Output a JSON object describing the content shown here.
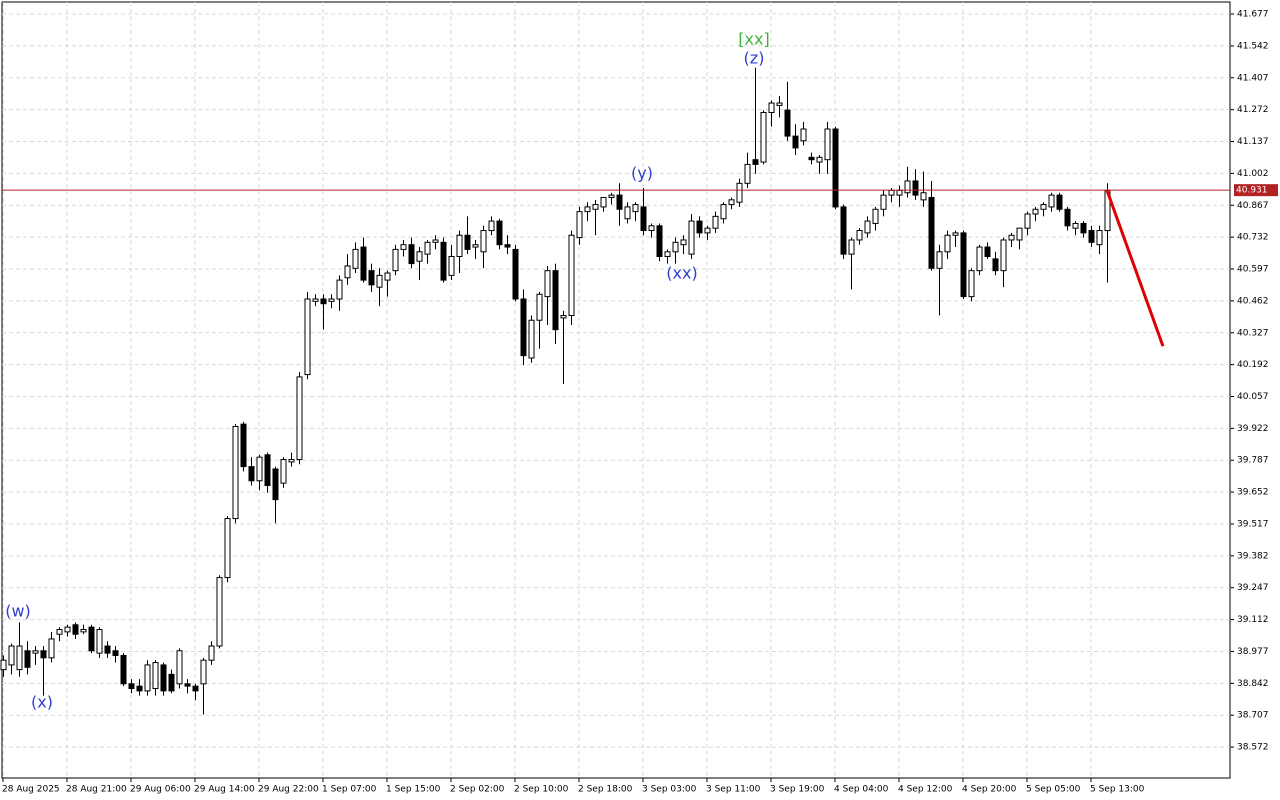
{
  "chart_data": {
    "type": "candlestick",
    "categories": [
      "28 Aug 2025",
      null,
      null,
      null,
      null,
      null,
      null,
      null,
      "28 Aug 21:00",
      null,
      null,
      null,
      null,
      null,
      null,
      null,
      "29 Aug 06:00",
      null,
      null,
      null,
      null,
      null,
      null,
      null,
      "29 Aug 14:00",
      null,
      null,
      null,
      null,
      null,
      null,
      null,
      "29 Aug 22:00",
      null,
      null,
      null,
      null,
      null,
      null,
      null,
      "1 Sep 07:00",
      null,
      null,
      null,
      null,
      null,
      null,
      null,
      "1 Sep 15:00",
      null,
      null,
      null,
      null,
      null,
      null,
      null,
      "2 Sep 02:00",
      null,
      null,
      null,
      null,
      null,
      null,
      null,
      "2 Sep 10:00",
      null,
      null,
      null,
      null,
      null,
      null,
      null,
      "2 Sep 18:00",
      null,
      null,
      null,
      null,
      null,
      null,
      null,
      "3 Sep 03:00",
      null,
      null,
      null,
      null,
      null,
      null,
      null,
      "3 Sep 11:00",
      null,
      null,
      null,
      null,
      null,
      null,
      null,
      "3 Sep 19:00",
      null,
      null,
      null,
      null,
      null,
      null,
      null,
      "4 Sep 04:00",
      null,
      null,
      null,
      null,
      null,
      null,
      null,
      "4 Sep 12:00",
      null,
      null,
      null,
      null,
      null,
      null,
      null,
      "4 Sep 20:00",
      null,
      null,
      null,
      null,
      null,
      null,
      null,
      "5 Sep 05:00",
      null,
      null,
      null,
      null,
      null,
      null,
      null,
      "5 Sep 13:00",
      null,
      null
    ],
    "ohlc": [
      [
        38.9,
        38.96,
        38.87,
        38.94
      ],
      [
        38.92,
        39.01,
        38.88,
        39.0
      ],
      [
        38.9,
        39.1,
        38.87,
        39.0
      ],
      [
        38.98,
        39.02,
        38.88,
        38.91
      ],
      [
        38.97,
        39.0,
        38.92,
        38.98
      ],
      [
        38.98,
        39.0,
        38.79,
        38.95
      ],
      [
        38.95,
        39.06,
        38.93,
        39.03
      ],
      [
        39.05,
        39.08,
        39.02,
        39.07
      ],
      [
        39.06,
        39.09,
        39.04,
        39.08
      ],
      [
        39.09,
        39.1,
        39.03,
        39.05
      ],
      [
        39.06,
        39.09,
        39.05,
        39.07
      ],
      [
        39.08,
        39.09,
        38.97,
        38.98
      ],
      [
        38.97,
        39.08,
        38.95,
        39.07
      ],
      [
        39.0,
        39.02,
        38.95,
        38.97
      ],
      [
        38.98,
        39.0,
        38.93,
        38.96
      ],
      [
        38.96,
        38.97,
        38.83,
        38.84
      ],
      [
        38.84,
        38.86,
        38.8,
        38.82
      ],
      [
        38.83,
        38.86,
        38.79,
        38.81
      ],
      [
        38.81,
        38.94,
        38.79,
        38.92
      ],
      [
        38.82,
        38.94,
        38.79,
        38.93
      ],
      [
        38.92,
        38.93,
        38.79,
        38.81
      ],
      [
        38.88,
        38.9,
        38.8,
        38.81
      ],
      [
        38.84,
        38.99,
        38.82,
        38.98
      ],
      [
        38.84,
        38.86,
        38.8,
        38.83
      ],
      [
        38.83,
        38.84,
        38.77,
        38.81
      ],
      [
        38.84,
        38.95,
        38.71,
        38.94
      ],
      [
        38.94,
        39.02,
        38.92,
        39.0
      ],
      [
        39.0,
        39.3,
        38.99,
        39.29
      ],
      [
        39.29,
        39.55,
        39.27,
        39.54
      ],
      [
        39.54,
        39.94,
        39.52,
        39.93
      ],
      [
        39.94,
        39.95,
        39.74,
        39.76
      ],
      [
        39.76,
        39.8,
        39.68,
        39.7
      ],
      [
        39.7,
        39.81,
        39.66,
        39.8
      ],
      [
        39.81,
        39.82,
        39.65,
        39.68
      ],
      [
        39.75,
        39.76,
        39.52,
        39.62
      ],
      [
        39.69,
        39.8,
        39.67,
        39.79
      ],
      [
        39.78,
        39.82,
        39.76,
        39.79
      ],
      [
        39.79,
        40.16,
        39.77,
        40.14
      ],
      [
        40.15,
        40.5,
        40.13,
        40.47
      ],
      [
        40.46,
        40.49,
        40.44,
        40.47
      ],
      [
        40.47,
        40.49,
        40.34,
        40.45
      ],
      [
        40.46,
        40.49,
        40.43,
        40.47
      ],
      [
        40.47,
        40.57,
        40.42,
        40.55
      ],
      [
        40.56,
        40.66,
        40.53,
        40.61
      ],
      [
        40.6,
        40.71,
        40.58,
        40.68
      ],
      [
        40.69,
        40.73,
        40.54,
        40.55
      ],
      [
        40.59,
        40.62,
        40.5,
        40.53
      ],
      [
        40.52,
        40.6,
        40.44,
        40.57
      ],
      [
        40.55,
        40.59,
        40.48,
        40.58
      ],
      [
        40.59,
        40.7,
        40.57,
        40.68
      ],
      [
        40.68,
        40.72,
        40.65,
        40.7
      ],
      [
        40.7,
        40.73,
        40.6,
        40.62
      ],
      [
        40.63,
        40.69,
        40.55,
        40.67
      ],
      [
        40.66,
        40.72,
        40.62,
        40.71
      ],
      [
        40.71,
        40.74,
        40.68,
        40.72
      ],
      [
        40.71,
        40.73,
        40.54,
        40.55
      ],
      [
        40.57,
        40.7,
        40.55,
        40.65
      ],
      [
        40.65,
        40.76,
        40.58,
        40.74
      ],
      [
        40.74,
        40.82,
        40.66,
        40.68
      ],
      [
        40.69,
        40.72,
        40.64,
        40.7
      ],
      [
        40.67,
        40.78,
        40.6,
        40.76
      ],
      [
        40.76,
        40.82,
        40.74,
        40.8
      ],
      [
        40.8,
        40.81,
        40.68,
        40.7
      ],
      [
        40.7,
        40.74,
        40.66,
        40.69
      ],
      [
        40.68,
        40.7,
        40.46,
        40.47
      ],
      [
        40.47,
        40.51,
        40.19,
        40.23
      ],
      [
        40.22,
        40.4,
        40.2,
        40.38
      ],
      [
        40.38,
        40.5,
        40.26,
        40.49
      ],
      [
        40.48,
        40.61,
        40.36,
        40.59
      ],
      [
        40.59,
        40.62,
        40.28,
        40.34
      ],
      [
        40.39,
        40.42,
        40.11,
        40.4
      ],
      [
        40.4,
        40.76,
        40.36,
        40.74
      ],
      [
        40.73,
        40.86,
        40.7,
        40.84
      ],
      [
        40.84,
        40.88,
        40.8,
        40.86
      ],
      [
        40.85,
        40.89,
        40.74,
        40.87
      ],
      [
        40.86,
        40.9,
        40.84,
        40.9
      ],
      [
        40.9,
        40.92,
        40.87,
        40.91
      ],
      [
        40.91,
        40.96,
        40.78,
        40.85
      ],
      [
        40.81,
        40.88,
        40.79,
        40.86
      ],
      [
        40.84,
        40.88,
        40.8,
        40.87
      ],
      [
        40.86,
        40.94,
        40.74,
        40.76
      ],
      [
        40.76,
        40.79,
        40.73,
        40.78
      ],
      [
        40.78,
        40.79,
        40.63,
        40.65
      ],
      [
        40.65,
        40.68,
        40.62,
        40.67
      ],
      [
        40.67,
        40.73,
        40.62,
        40.71
      ],
      [
        40.7,
        40.74,
        40.66,
        40.72
      ],
      [
        40.66,
        40.83,
        40.64,
        40.8
      ],
      [
        40.8,
        40.82,
        40.73,
        40.75
      ],
      [
        40.75,
        40.78,
        40.72,
        40.77
      ],
      [
        40.77,
        40.84,
        40.75,
        40.82
      ],
      [
        40.81,
        40.88,
        40.79,
        40.87
      ],
      [
        40.87,
        40.9,
        40.85,
        40.89
      ],
      [
        40.88,
        40.98,
        40.86,
        40.96
      ],
      [
        40.96,
        41.09,
        40.94,
        41.04
      ],
      [
        41.06,
        41.45,
        41.0,
        41.04
      ],
      [
        41.05,
        41.27,
        41.04,
        41.26
      ],
      [
        41.26,
        41.31,
        41.2,
        41.3
      ],
      [
        41.29,
        41.33,
        41.24,
        41.3
      ],
      [
        41.27,
        41.39,
        41.14,
        41.16
      ],
      [
        41.16,
        41.21,
        41.08,
        41.11
      ],
      [
        41.14,
        41.22,
        41.12,
        41.19
      ],
      [
        41.07,
        41.09,
        41.04,
        41.06
      ],
      [
        41.05,
        41.08,
        41.0,
        41.07
      ],
      [
        41.06,
        41.22,
        41.0,
        41.19
      ],
      [
        41.19,
        41.2,
        40.85,
        40.86
      ],
      [
        40.86,
        40.87,
        40.64,
        40.66
      ],
      [
        40.66,
        40.73,
        40.51,
        40.72
      ],
      [
        40.72,
        40.77,
        40.7,
        40.76
      ],
      [
        40.75,
        40.82,
        40.73,
        40.8
      ],
      [
        40.79,
        40.86,
        40.76,
        40.85
      ],
      [
        40.85,
        40.93,
        40.82,
        40.91
      ],
      [
        40.91,
        40.94,
        40.88,
        40.93
      ],
      [
        40.91,
        40.95,
        40.86,
        40.93
      ],
      [
        40.92,
        41.03,
        40.9,
        40.97
      ],
      [
        40.97,
        41.02,
        40.89,
        40.91
      ],
      [
        40.89,
        41.01,
        40.86,
        40.92
      ],
      [
        40.9,
        40.97,
        40.59,
        40.6
      ],
      [
        40.6,
        40.7,
        40.4,
        40.67
      ],
      [
        40.67,
        40.76,
        40.64,
        40.74
      ],
      [
        40.74,
        40.76,
        40.69,
        40.75
      ],
      [
        40.75,
        40.76,
        40.47,
        40.48
      ],
      [
        40.48,
        40.6,
        40.46,
        40.59
      ],
      [
        40.59,
        40.7,
        40.57,
        40.69
      ],
      [
        40.69,
        40.71,
        40.64,
        40.65
      ],
      [
        40.64,
        40.67,
        40.57,
        40.59
      ],
      [
        40.59,
        40.73,
        40.52,
        40.72
      ],
      [
        40.72,
        40.75,
        40.69,
        40.74
      ],
      [
        40.72,
        40.77,
        40.68,
        40.77
      ],
      [
        40.77,
        40.84,
        40.74,
        40.83
      ],
      [
        40.83,
        40.86,
        40.8,
        40.85
      ],
      [
        40.85,
        40.88,
        40.82,
        40.87
      ],
      [
        40.86,
        40.92,
        40.84,
        40.91
      ],
      [
        40.91,
        40.92,
        40.84,
        40.85
      ],
      [
        40.85,
        40.86,
        40.76,
        40.78
      ],
      [
        40.77,
        40.8,
        40.74,
        40.79
      ],
      [
        40.79,
        40.8,
        40.73,
        40.75
      ],
      [
        40.76,
        40.78,
        40.69,
        40.71
      ],
      [
        40.7,
        40.78,
        40.66,
        40.76
      ],
      [
        40.76,
        40.96,
        40.54,
        40.93
      ]
    ],
    "up_color": "#ffffff",
    "down_color": "#000000",
    "outline_color": "#000000",
    "ylim": [
      38.441,
      41.728
    ],
    "yticks": [
      41.677,
      41.542,
      41.407,
      41.272,
      41.137,
      41.002,
      40.867,
      40.732,
      40.597,
      40.462,
      40.327,
      40.192,
      40.057,
      39.922,
      39.787,
      39.652,
      39.517,
      39.382,
      39.247,
      39.112,
      38.977,
      38.842,
      38.707,
      38.572
    ],
    "grid": true,
    "current_price": {
      "value": 40.931,
      "color": "#b22222"
    },
    "forecast": {
      "x": [
        138,
        145
      ],
      "values": [
        40.93,
        40.27
      ],
      "color": "#e00000"
    },
    "annotations": [
      {
        "text": "(w)",
        "color": "#2c3fd0"
      },
      {
        "text": "(x)",
        "color": "#2c3fd0"
      },
      {
        "text": "(y)",
        "color": "#2c3fd0"
      },
      {
        "text": "(xx)",
        "color": "#2c3fd0"
      },
      {
        "text": "(z)",
        "color": "#2c3fd0"
      },
      {
        "text": "[xx]",
        "color": "#3cb43c"
      }
    ]
  }
}
